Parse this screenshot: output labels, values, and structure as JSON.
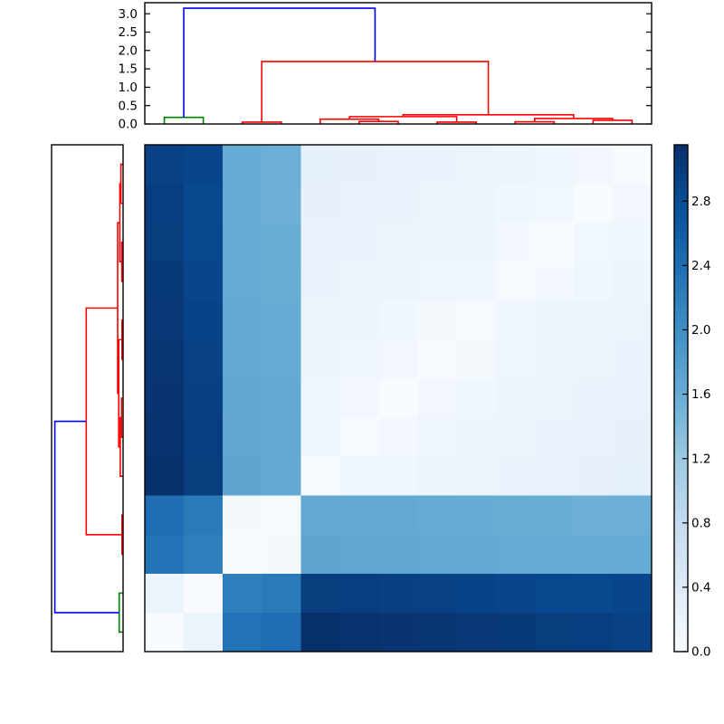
{
  "figure": {
    "background": "#ffffff",
    "frame_color": "#000000"
  },
  "chart_data": {
    "type": "heatmap",
    "layout": "clustered distance-matrix heatmap with column dendrogram on top, row dendrogram on left, colorbar on right; rows ordered bottom-to-top, columns left-to-right (zero diagonal runs bottom-left to top-right)",
    "title": "",
    "n_items": 13,
    "heatmap": {
      "vmin": 0.0,
      "vmax": 3.15,
      "colormap": "Blues",
      "colormap_anchors": [
        "#f7fbff",
        "#deebf7",
        "#c6dbef",
        "#9ecae1",
        "#6baed6",
        "#4292c6",
        "#2171b5",
        "#08519c",
        "#08306b"
      ],
      "matrix": [
        [
          0.0,
          0.18,
          2.35,
          2.4,
          3.15,
          3.13,
          3.1,
          3.08,
          3.05,
          3.03,
          3.0,
          2.98,
          2.95
        ],
        [
          0.18,
          0.0,
          2.2,
          2.25,
          3.0,
          2.98,
          2.96,
          2.94,
          2.92,
          2.9,
          2.88,
          2.86,
          2.9
        ],
        [
          2.35,
          2.2,
          0.0,
          0.05,
          1.7,
          1.69,
          1.68,
          1.66,
          1.65,
          1.63,
          1.62,
          1.6,
          1.61
        ],
        [
          2.4,
          2.25,
          0.05,
          0.0,
          1.66,
          1.65,
          1.64,
          1.62,
          1.61,
          1.59,
          1.58,
          1.56,
          1.57
        ],
        [
          3.15,
          3.0,
          1.7,
          1.66,
          0.0,
          0.12,
          0.13,
          0.16,
          0.18,
          0.2,
          0.22,
          0.24,
          0.26
        ],
        [
          3.13,
          2.98,
          1.69,
          1.65,
          0.12,
          0.0,
          0.07,
          0.12,
          0.15,
          0.18,
          0.2,
          0.22,
          0.24
        ],
        [
          3.1,
          2.96,
          1.68,
          1.64,
          0.13,
          0.07,
          0.0,
          0.1,
          0.13,
          0.16,
          0.18,
          0.2,
          0.22
        ],
        [
          3.08,
          2.94,
          1.66,
          1.62,
          0.16,
          0.12,
          0.1,
          0.0,
          0.05,
          0.14,
          0.16,
          0.18,
          0.2
        ],
        [
          3.05,
          2.92,
          1.65,
          1.61,
          0.18,
          0.15,
          0.13,
          0.05,
          0.0,
          0.12,
          0.15,
          0.17,
          0.19
        ],
        [
          3.03,
          2.9,
          1.63,
          1.59,
          0.2,
          0.18,
          0.16,
          0.14,
          0.12,
          0.0,
          0.06,
          0.13,
          0.15
        ],
        [
          3.0,
          2.88,
          1.62,
          1.58,
          0.22,
          0.2,
          0.18,
          0.16,
          0.15,
          0.06,
          0.0,
          0.11,
          0.13
        ],
        [
          2.98,
          2.86,
          1.6,
          1.56,
          0.24,
          0.22,
          0.2,
          0.18,
          0.17,
          0.13,
          0.11,
          0.0,
          0.1
        ],
        [
          2.95,
          2.9,
          1.61,
          1.57,
          0.26,
          0.24,
          0.22,
          0.2,
          0.19,
          0.15,
          0.13,
          0.1,
          0.0
        ]
      ]
    },
    "dendrogram": {
      "axis_max": 3.3,
      "top_axis_tick_labels": [
        "3.0",
        "2.5",
        "2.0",
        "1.5",
        "1.0",
        "0.5",
        "0.0"
      ],
      "link_colors": {
        "green": "#008000",
        "red": "#ff0000",
        "blue": "#0000ff"
      },
      "linkage": [
        {
          "id": "L0",
          "a": 2,
          "b": 3,
          "h": 0.05,
          "color": "red"
        },
        {
          "id": "L1",
          "a": 7,
          "b": 8,
          "h": 0.05,
          "color": "red"
        },
        {
          "id": "L2",
          "a": 9,
          "b": 10,
          "h": 0.06,
          "color": "red"
        },
        {
          "id": "L3",
          "a": 5,
          "b": 6,
          "h": 0.07,
          "color": "red"
        },
        {
          "id": "L4",
          "a": 11,
          "b": 12,
          "h": 0.1,
          "color": "red"
        },
        {
          "id": "L5",
          "a": 4,
          "b": "L3",
          "h": 0.13,
          "color": "red"
        },
        {
          "id": "L6",
          "a": "L1",
          "b": "L5",
          "h": 0.2,
          "color": "red"
        },
        {
          "id": "L7",
          "a": "L2",
          "b": "L4",
          "h": 0.15,
          "color": "red"
        },
        {
          "id": "L8",
          "a": "L6",
          "b": "L7",
          "h": 0.25,
          "color": "red"
        },
        {
          "id": "L9",
          "a": "L0",
          "b": "L8",
          "h": 1.7,
          "color": "red"
        },
        {
          "id": "L10",
          "a": 0,
          "b": 1,
          "h": 0.18,
          "color": "green"
        },
        {
          "id": "L11",
          "a": "L10",
          "b": "L9",
          "h": 3.15,
          "color": "blue"
        }
      ]
    },
    "colorbar": {
      "min": 0.0,
      "max": 3.15,
      "tick_labels": [
        "0.0",
        "0.4",
        "0.8",
        "1.2",
        "1.6",
        "2.0",
        "2.4",
        "2.8"
      ]
    }
  }
}
